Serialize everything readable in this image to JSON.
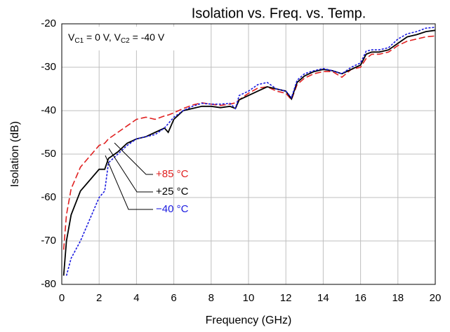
{
  "chart_data": {
    "type": "line",
    "title": "Isolation vs. Freq. vs. Temp.",
    "annotation": [
      "V",
      "C1",
      " = 0 V, V",
      "C2",
      " = -40 V"
    ],
    "xlabel": "Frequency (GHz)",
    "ylabel": "Isolation (dB)",
    "xlim": [
      0,
      20
    ],
    "ylim": [
      -80,
      -20
    ],
    "xticks": [
      0,
      2,
      4,
      6,
      8,
      10,
      12,
      14,
      16,
      18,
      20
    ],
    "yticks": [
      -80,
      -70,
      -60,
      -50,
      -40,
      -30,
      -20
    ],
    "grid": true,
    "x": [
      0.1,
      0.25,
      0.5,
      1,
      1.5,
      2,
      2.3,
      2.5,
      3,
      3.5,
      4,
      4.5,
      5,
      5.5,
      5.7,
      6,
      6.5,
      7,
      7.5,
      8,
      8.5,
      9,
      9.3,
      9.5,
      10,
      10.5,
      11,
      11.5,
      12,
      12.3,
      12.6,
      13,
      13.5,
      14,
      14.5,
      15,
      15.5,
      16,
      16.3,
      16.6,
      17,
      17.5,
      18,
      18.5,
      19,
      19.5,
      20
    ],
    "series": [
      {
        "name": "+85 °C",
        "color": "#e02020",
        "style": "dashed",
        "values": [
          -72,
          -64,
          -58,
          -53,
          -50.5,
          -48,
          -47.5,
          -46.5,
          -45,
          -43.5,
          -42,
          -41.5,
          -42,
          -41.2,
          -41,
          -40.5,
          -39.5,
          -38.7,
          -38.2,
          -38.5,
          -38.8,
          -38.5,
          -38.2,
          -37.5,
          -36,
          -34.8,
          -34.5,
          -35.5,
          -36,
          -37.5,
          -34,
          -32.5,
          -31.5,
          -31,
          -31,
          -32.3,
          -30.5,
          -30,
          -28,
          -27,
          -27,
          -26.5,
          -25,
          -24,
          -23.5,
          -23,
          -22.8
        ]
      },
      {
        "name": "+25 °C",
        "color": "#000000",
        "style": "solid",
        "values": [
          -78,
          -70,
          -64,
          -58.5,
          -56,
          -53.5,
          -53.5,
          -51,
          -49.5,
          -47.5,
          -46.5,
          -46,
          -45,
          -44,
          -45,
          -42,
          -40,
          -39.5,
          -39,
          -39,
          -39.3,
          -39,
          -39.5,
          -37.5,
          -36.5,
          -35.5,
          -34.5,
          -35,
          -35.5,
          -37.3,
          -33.5,
          -32,
          -31,
          -30.5,
          -30.8,
          -31.5,
          -30.5,
          -29.5,
          -27,
          -26.5,
          -26.5,
          -26,
          -24.5,
          -23,
          -22.5,
          -21.8,
          -21.5
        ]
      },
      {
        "name": "−40 °C",
        "color": "#1a1ae0",
        "style": "dotted",
        "values": [
          null,
          -78,
          -74,
          -70,
          -65,
          -60,
          -58.5,
          -52,
          -50,
          -48,
          -46.5,
          -46,
          -45.5,
          -44,
          -43,
          -41.5,
          -40,
          -39,
          -38.3,
          -38.5,
          -38.5,
          -38.3,
          -39.5,
          -36.5,
          -35.5,
          -34,
          -33.5,
          -35,
          -35.5,
          -37,
          -33,
          -31.5,
          -30.8,
          -30.3,
          -30.8,
          -31.5,
          -30,
          -29,
          -26.3,
          -26,
          -26,
          -25.5,
          -23.5,
          -22.3,
          -21.8,
          -21,
          -20.8
        ]
      }
    ]
  }
}
